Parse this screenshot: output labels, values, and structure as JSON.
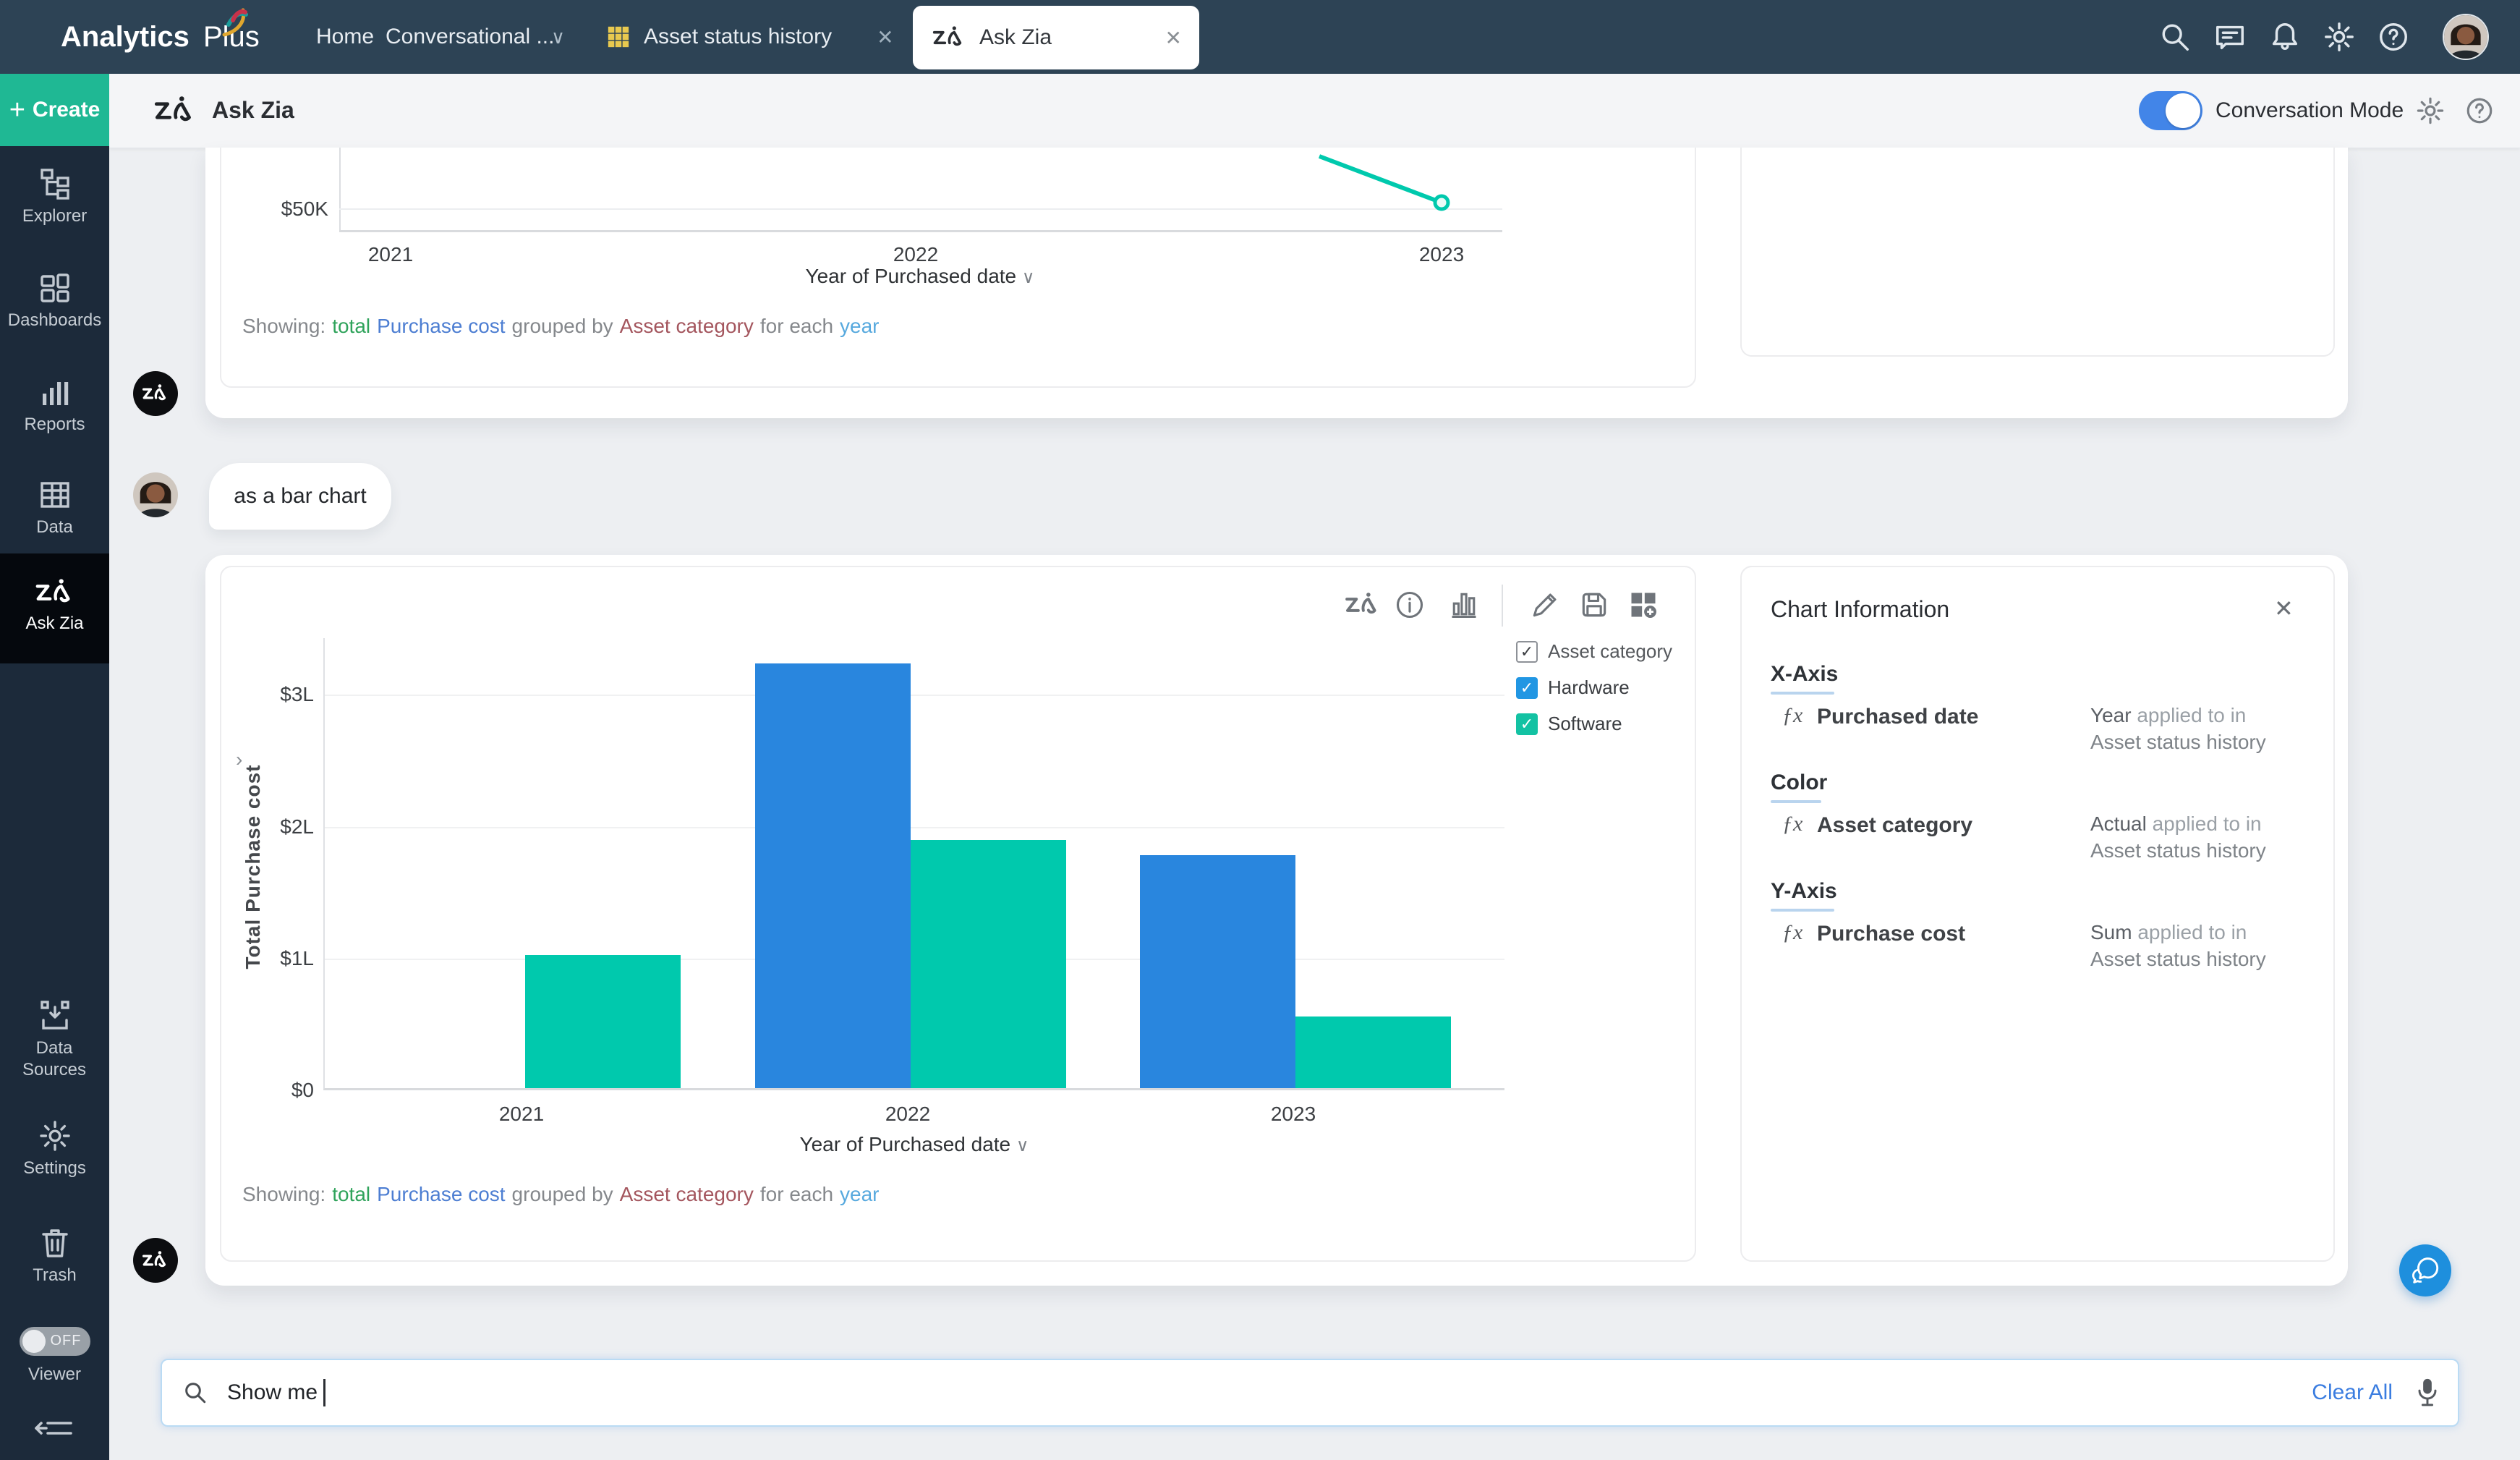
{
  "app": {
    "brand_analytics": "Analytics",
    "brand_plus": "Plus"
  },
  "navbar": {
    "links": [
      {
        "label": "Home"
      },
      {
        "label": "Conversational ..."
      }
    ],
    "tabs": [
      {
        "label": "Asset status history"
      },
      {
        "label": "Ask Zia"
      }
    ]
  },
  "subheader": {
    "title": "Ask Zia",
    "conversation_mode_label": "Conversation Mode",
    "toggle_on": true
  },
  "sidebar": {
    "create_label": "Create",
    "items": [
      {
        "label": "Explorer"
      },
      {
        "label": "Dashboards"
      },
      {
        "label": "Reports"
      },
      {
        "label": "Data"
      },
      {
        "label": "Ask Zia",
        "active": true
      }
    ],
    "bottom_items": [
      {
        "label": "Data Sources"
      },
      {
        "label": "Settings"
      },
      {
        "label": "Trash"
      }
    ],
    "viewer_label": "Viewer",
    "viewer_state": "OFF"
  },
  "conversation": {
    "user_message": "as a bar chart",
    "showing_line": {
      "prefix": "Showing:",
      "seg_total": "total",
      "seg_measure": "Purchase cost",
      "seg_grouped": "grouped by",
      "seg_dimension": "Asset category",
      "seg_foreach": "for each",
      "seg_year": "year"
    },
    "line_chart_card": {
      "ytick": "$50K",
      "xticks": [
        "2021",
        "2022",
        "2023"
      ],
      "xlabel": "Year of Purchased date"
    },
    "bar_chart_card": {
      "yticks": [
        "$0",
        "$1L",
        "$2L",
        "$3L"
      ],
      "xticks": [
        "2021",
        "2022",
        "2023"
      ],
      "xlabel": "Year of Purchased date",
      "ylabel": "Total Purchase cost",
      "legend": {
        "field": "Asset category",
        "items": [
          {
            "label": "Hardware",
            "color": "#2196e3"
          },
          {
            "label": "Software",
            "color": "#13c2a3"
          }
        ]
      }
    },
    "chart_info": {
      "title": "Chart Information",
      "sections": [
        {
          "heading": "X-Axis",
          "field": "Purchased date",
          "applied_strong": "Year",
          "applied_rest": "applied to in",
          "applied_target": "Asset status history"
        },
        {
          "heading": "Color",
          "field": "Asset category",
          "applied_strong": "Actual",
          "applied_rest": "applied to in",
          "applied_target": "Asset status history"
        },
        {
          "heading": "Y-Axis",
          "field": "Purchase cost",
          "applied_strong": "Sum",
          "applied_rest": "applied to in",
          "applied_target": "Asset status history"
        }
      ]
    }
  },
  "query_bar": {
    "value": "Show me",
    "clear_label": "Clear All"
  },
  "colors": {
    "navbar_bg": "#2d4355",
    "sidebar_bg": "#1c2a3a",
    "create_green": "#1fb894",
    "accent_teal": "#00c9ad",
    "accent_blue": "#2986de",
    "toggle_blue": "#4285e8",
    "link_blue": "#3b7de0",
    "tab_grid_yellow": "#e8c94f"
  },
  "chart_data": [
    {
      "type": "line",
      "note": "top of card scrolled out of view; only lower portion visible",
      "x": [
        "2021",
        "2022",
        "2023"
      ],
      "series": [
        {
          "name": "Software",
          "color": "#00c9ad",
          "visible_point": {
            "x": "2023",
            "y_approx": 55000
          }
        }
      ],
      "ytick_visible": "$50K",
      "xlabel": "Year of Purchased date"
    },
    {
      "type": "bar",
      "categories": [
        "2021",
        "2022",
        "2023"
      ],
      "series": [
        {
          "name": "Hardware",
          "color": "#2986de",
          "values": [
            null,
            325000,
            178000
          ]
        },
        {
          "name": "Software",
          "color": "#00c9ad",
          "values": [
            102000,
            190000,
            55000
          ]
        }
      ],
      "title": "",
      "xlabel": "Year of Purchased date",
      "ylabel": "Total Purchase cost",
      "yticks_labels": [
        "$0",
        "$1L",
        "$2L",
        "$3L"
      ],
      "ylim": [
        0,
        343000
      ],
      "unit": "L = lakh ($100,000)",
      "grid": true,
      "legend_position": "top-right"
    }
  ]
}
